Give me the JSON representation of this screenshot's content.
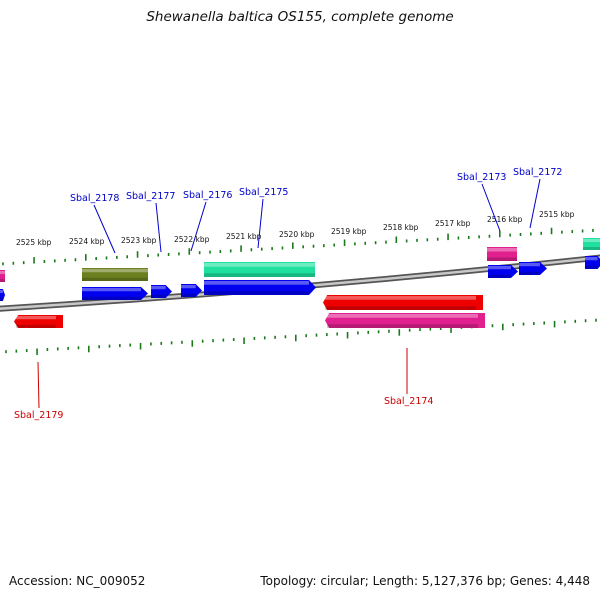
{
  "title": "Shewanella baltica OS155, complete genome",
  "accession": "Accession: NC_009052",
  "topology": "Topology: circular; Length: 5,127,376 bp; Genes: 4,448",
  "colors": {
    "label_blue": "#0000cc",
    "label_red": "#cc0000",
    "tick_green": "#1a7a1a",
    "backbone": "#808080"
  },
  "scale_labels": [
    "2525 kbp",
    "2524 kbp",
    "2523 kbp",
    "2522 kbp",
    "2521 kbp",
    "2520 kbp",
    "2519 kbp",
    "2518 kbp",
    "2517 kbp",
    "2516 kbp",
    "2515 kbp"
  ],
  "gene_labels": [
    {
      "name": "Sbal_2178",
      "color": "#0000cc"
    },
    {
      "name": "Sbal_2177",
      "color": "#0000cc"
    },
    {
      "name": "Sbal_2176",
      "color": "#0000cc"
    },
    {
      "name": "Sbal_2175",
      "color": "#0000cc"
    },
    {
      "name": "Sbal_2173",
      "color": "#0000cc"
    },
    {
      "name": "Sbal_2172",
      "color": "#0000cc"
    },
    {
      "name": "Sbal_2179",
      "color": "#cc0000"
    },
    {
      "name": "Sbal_2174",
      "color": "#cc0000"
    }
  ],
  "features": [
    {
      "color": "#e0208f",
      "kind": "rna"
    },
    {
      "color": "#0000ee",
      "kind": "cds"
    },
    {
      "color": "#6b7f1f",
      "kind": "gene"
    },
    {
      "color": "#0000ee",
      "kind": "cds"
    },
    {
      "color": "#0000ee",
      "kind": "cds"
    },
    {
      "color": "#0000ee",
      "kind": "cds"
    },
    {
      "color": "#20e0a0",
      "kind": "gene"
    },
    {
      "color": "#0000ee",
      "kind": "cds"
    },
    {
      "color": "#e0208f",
      "kind": "rna"
    },
    {
      "color": "#0000ee",
      "kind": "cds"
    },
    {
      "color": "#0000ee",
      "kind": "cds"
    },
    {
      "color": "#20e0a0",
      "kind": "gene"
    },
    {
      "color": "#0000ee",
      "kind": "cds"
    },
    {
      "color": "#ee0000",
      "kind": "gene"
    },
    {
      "color": "#ee0000",
      "kind": "gene"
    },
    {
      "color": "#e0208f",
      "kind": "rna"
    }
  ]
}
